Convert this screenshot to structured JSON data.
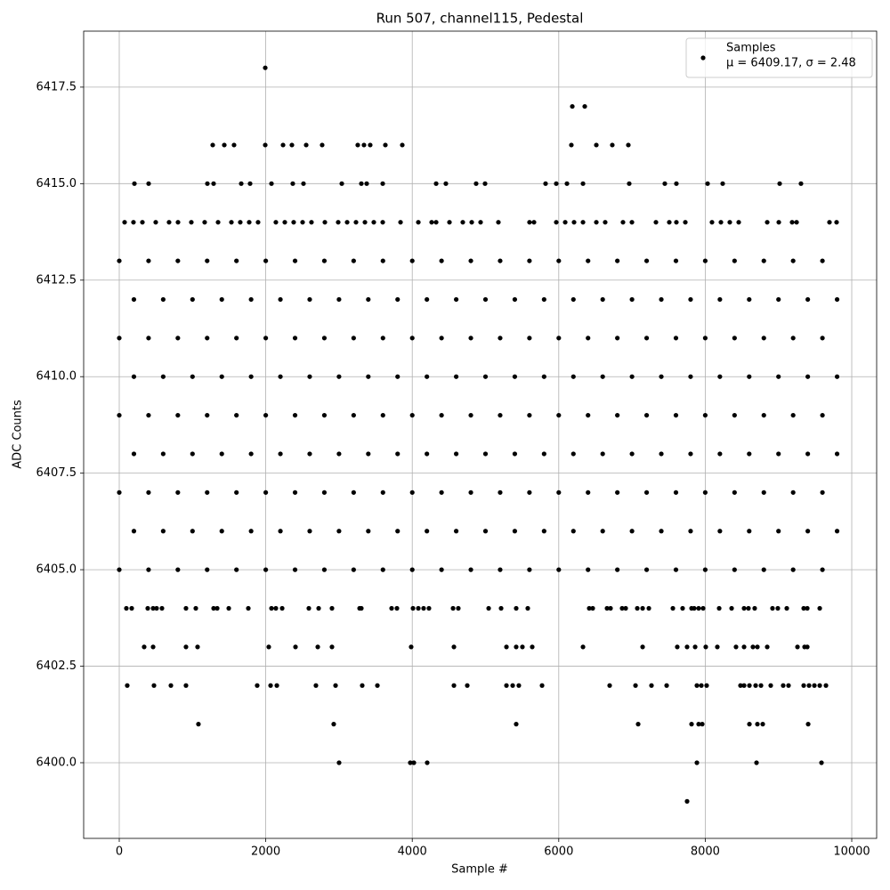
{
  "chart_data": {
    "type": "scatter",
    "title": "Run 507, channel115, Pedestal",
    "x_label": "Sample #",
    "y_label": "ADC Counts",
    "xlim": [
      -486,
      10340
    ],
    "ylim": [
      6398.04,
      6418.95
    ],
    "xticks": [
      0,
      2000,
      4000,
      6000,
      8000,
      10000
    ],
    "yticks": [
      {
        "value": 6400,
        "label": "6400.0"
      },
      6402.5,
      {
        "value": 6405,
        "label": "6405.0"
      },
      6407.5,
      {
        "value": 6410,
        "label": "6410.0"
      },
      6412.5,
      {
        "value": 6415,
        "label": "6415.0"
      },
      6417.5
    ],
    "grid": true,
    "legend": "upper right",
    "legend_stats": "μ = 6409.17, σ = 2.48",
    "x": [
      0,
      400,
      800,
      1200,
      1600,
      2000,
      2400,
      2800,
      3200,
      3600,
      4000,
      4400,
      4800,
      5200,
      5600,
      6000,
      6400,
      6800,
      7200,
      7600,
      8000,
      8400,
      8800,
      9200,
      9600,
      200,
      600,
      1000,
      1400,
      1800,
      2200,
      2600,
      3000,
      3400,
      3800,
      4200,
      4600,
      5000,
      5400,
      5800,
      6200,
      6600,
      7000,
      7400,
      7800,
      8200,
      8600,
      9000,
      9400,
      9800,
      0,
      400,
      800,
      1200,
      1600,
      2000,
      2400,
      2800,
      3200,
      3600,
      4000,
      4400,
      4800,
      5200,
      5600,
      6000,
      6400,
      6800,
      7200,
      7600,
      8000,
      8400,
      8800,
      9200,
      9600,
      200,
      600,
      1000,
      1400,
      1800,
      2200,
      2600,
      3000,
      3400,
      3800,
      4200,
      4600,
      5000,
      5400,
      5800,
      6200,
      6600,
      7000,
      7400,
      7800,
      8200,
      8600,
      9000,
      9400,
      9800,
      0,
      400,
      800,
      1200,
      1600,
      2000,
      2400,
      2800,
      3200,
      3600,
      4000,
      4400,
      4800,
      5200,
      5600,
      6000,
      6400,
      6800,
      7200,
      7600,
      8000,
      8400,
      8800,
      9200,
      9600,
      200,
      600,
      1000,
      1400,
      1800,
      2200,
      2600,
      3000,
      3400,
      3800,
      4200,
      4600,
      5000,
      5400,
      5800,
      6200,
      6600,
      7000,
      7400,
      7800,
      8200,
      8600,
      9000,
      9400,
      9800,
      0,
      400,
      800,
      1200,
      1600,
      2000,
      2400,
      2800,
      3200,
      3600,
      4000,
      4400,
      4800,
      5200,
      5600,
      6000,
      6400,
      6800,
      7200,
      7600,
      8000,
      8400,
      8800,
      9200,
      9600,
      200,
      600,
      1000,
      1400,
      1800,
      2200,
      2600,
      3000,
      3400,
      3800,
      4200,
      4600,
      5000,
      5400,
      5800,
      6200,
      6600,
      7000,
      7400,
      7800,
      8200,
      8600,
      9000,
      9400,
      9800,
      0,
      400,
      800,
      1200,
      1600,
      2000,
      2400,
      2800,
      3200,
      3600,
      4000,
      4400,
      4800,
      5200,
      5600,
      6000,
      6400,
      6800,
      7200,
      7600,
      8000,
      8400,
      8800,
      9200,
      9600,
      1993,
      6185,
      6355,
      1276,
      1434,
      1567,
      1993,
      2236,
      2357,
      2552,
      2770,
      3256,
      3341,
      3426,
      3633,
      3864,
      6172,
      6513,
      6731,
      6950,
      207,
      401,
      1203,
      1288,
      1665,
      1786,
      2078,
      2369,
      2515,
      3038,
      3305,
      3378,
      3597,
      4326,
      4459,
      4872,
      4994,
      5820,
      5966,
      6112,
      6331,
      6962,
      7448,
      7606,
      8032,
      8238,
      9016,
      9307,
      73,
      194,
      316,
      498,
      680,
      802,
      984,
      1166,
      1349,
      1531,
      1652,
      1774,
      1895,
      2138,
      2260,
      2381,
      2503,
      2624,
      2807,
      2989,
      3111,
      3232,
      3354,
      3475,
      3597,
      3840,
      4083,
      4265,
      4326,
      4508,
      4690,
      4812,
      4933,
      5176,
      5601,
      5662,
      5966,
      6088,
      6209,
      6331,
      6513,
      6634,
      6877,
      6999,
      7327,
      7509,
      7606,
      7728,
      8092,
      8214,
      8335,
      8457,
      8846,
      9004,
      9186,
      9247,
      9696,
      9793,
      97,
      170,
      389,
      462,
      510,
      583,
      911,
      1045,
      1288,
      1337,
      1495,
      1762,
      2078,
      2138,
      2224,
      2588,
      2722,
      2904,
      3281,
      3305,
      3718,
      3791,
      4010,
      4083,
      4155,
      4228,
      4557,
      4629,
      5043,
      5213,
      5419,
      5577,
      6416,
      6464,
      6659,
      6707,
      6865,
      6914,
      7072,
      7145,
      7230,
      7558,
      7691,
      7813,
      7849,
      7910,
      7971,
      8190,
      8360,
      8530,
      8590,
      8675,
      8918,
      8991,
      9113,
      9344,
      9393,
      9563,
      340,
      462,
      911,
      1069,
      2041,
      2406,
      2710,
      2904,
      3985,
      4569,
      5286,
      5419,
      5504,
      5638,
      6331,
      7145,
      7618,
      7752,
      7862,
      8007,
      8165,
      8420,
      8530,
      8651,
      8712,
      8846,
      9259,
      9356,
      9393,
      109,
      474,
      705,
      911,
      1883,
      2066,
      2151,
      2685,
      2953,
      3317,
      3524,
      4569,
      4751,
      5286,
      5371,
      5455,
      5772,
      6695,
      7048,
      7266,
      7473,
      7886,
      7947,
      8019,
      8481,
      8530,
      8603,
      8688,
      8761,
      8894,
      9064,
      9137,
      9344,
      9417,
      9490,
      9563,
      9648,
      1081,
      2928,
      5419,
      7084,
      7813,
      7910,
      7959,
      8603,
      8712,
      8785,
      9405,
      3001,
      3973,
      4022,
      4204,
      7886,
      8700,
      9587,
      7752
    ],
    "series": [
      {
        "name": "Samples",
        "color": "#000000",
        "values": [
          6405,
          6405,
          6405,
          6405,
          6405,
          6405,
          6405,
          6405,
          6405,
          6405,
          6405,
          6405,
          6405,
          6405,
          6405,
          6405,
          6405,
          6405,
          6405,
          6405,
          6405,
          6405,
          6405,
          6405,
          6405,
          6406,
          6406,
          6406,
          6406,
          6406,
          6406,
          6406,
          6406,
          6406,
          6406,
          6406,
          6406,
          6406,
          6406,
          6406,
          6406,
          6406,
          6406,
          6406,
          6406,
          6406,
          6406,
          6406,
          6406,
          6406,
          6407,
          6407,
          6407,
          6407,
          6407,
          6407,
          6407,
          6407,
          6407,
          6407,
          6407,
          6407,
          6407,
          6407,
          6407,
          6407,
          6407,
          6407,
          6407,
          6407,
          6407,
          6407,
          6407,
          6407,
          6407,
          6408,
          6408,
          6408,
          6408,
          6408,
          6408,
          6408,
          6408,
          6408,
          6408,
          6408,
          6408,
          6408,
          6408,
          6408,
          6408,
          6408,
          6408,
          6408,
          6408,
          6408,
          6408,
          6408,
          6408,
          6408,
          6409,
          6409,
          6409,
          6409,
          6409,
          6409,
          6409,
          6409,
          6409,
          6409,
          6409,
          6409,
          6409,
          6409,
          6409,
          6409,
          6409,
          6409,
          6409,
          6409,
          6409,
          6409,
          6409,
          6409,
          6409,
          6410,
          6410,
          6410,
          6410,
          6410,
          6410,
          6410,
          6410,
          6410,
          6410,
          6410,
          6410,
          6410,
          6410,
          6410,
          6410,
          6410,
          6410,
          6410,
          6410,
          6410,
          6410,
          6410,
          6410,
          6410,
          6411,
          6411,
          6411,
          6411,
          6411,
          6411,
          6411,
          6411,
          6411,
          6411,
          6411,
          6411,
          6411,
          6411,
          6411,
          6411,
          6411,
          6411,
          6411,
          6411,
          6411,
          6411,
          6411,
          6411,
          6411,
          6412,
          6412,
          6412,
          6412,
          6412,
          6412,
          6412,
          6412,
          6412,
          6412,
          6412,
          6412,
          6412,
          6412,
          6412,
          6412,
          6412,
          6412,
          6412,
          6412,
          6412,
          6412,
          6412,
          6412,
          6412,
          6413,
          6413,
          6413,
          6413,
          6413,
          6413,
          6413,
          6413,
          6413,
          6413,
          6413,
          6413,
          6413,
          6413,
          6413,
          6413,
          6413,
          6413,
          6413,
          6413,
          6413,
          6413,
          6413,
          6413,
          6413,
          6418,
          6417,
          6417,
          6416,
          6416,
          6416,
          6416,
          6416,
          6416,
          6416,
          6416,
          6416,
          6416,
          6416,
          6416,
          6416,
          6416,
          6416,
          6416,
          6416,
          6415,
          6415,
          6415,
          6415,
          6415,
          6415,
          6415,
          6415,
          6415,
          6415,
          6415,
          6415,
          6415,
          6415,
          6415,
          6415,
          6415,
          6415,
          6415,
          6415,
          6415,
          6415,
          6415,
          6415,
          6415,
          6415,
          6415,
          6415,
          6414,
          6414,
          6414,
          6414,
          6414,
          6414,
          6414,
          6414,
          6414,
          6414,
          6414,
          6414,
          6414,
          6414,
          6414,
          6414,
          6414,
          6414,
          6414,
          6414,
          6414,
          6414,
          6414,
          6414,
          6414,
          6414,
          6414,
          6414,
          6414,
          6414,
          6414,
          6414,
          6414,
          6414,
          6414,
          6414,
          6414,
          6414,
          6414,
          6414,
          6414,
          6414,
          6414,
          6414,
          6414,
          6414,
          6414,
          6414,
          6414,
          6414,
          6414,
          6414,
          6414,
          6414,
          6414,
          6414,
          6414,
          6414,
          6404,
          6404,
          6404,
          6404,
          6404,
          6404,
          6404,
          6404,
          6404,
          6404,
          6404,
          6404,
          6404,
          6404,
          6404,
          6404,
          6404,
          6404,
          6404,
          6404,
          6404,
          6404,
          6404,
          6404,
          6404,
          6404,
          6404,
          6404,
          6404,
          6404,
          6404,
          6404,
          6404,
          6404,
          6404,
          6404,
          6404,
          6404,
          6404,
          6404,
          6404,
          6404,
          6404,
          6404,
          6404,
          6404,
          6404,
          6404,
          6404,
          6404,
          6404,
          6404,
          6404,
          6404,
          6404,
          6404,
          6404,
          6404,
          6403,
          6403,
          6403,
          6403,
          6403,
          6403,
          6403,
          6403,
          6403,
          6403,
          6403,
          6403,
          6403,
          6403,
          6403,
          6403,
          6403,
          6403,
          6403,
          6403,
          6403,
          6403,
          6403,
          6403,
          6403,
          6403,
          6403,
          6403,
          6403,
          6402,
          6402,
          6402,
          6402,
          6402,
          6402,
          6402,
          6402,
          6402,
          6402,
          6402,
          6402,
          6402,
          6402,
          6402,
          6402,
          6402,
          6402,
          6402,
          6402,
          6402,
          6402,
          6402,
          6402,
          6402,
          6402,
          6402,
          6402,
          6402,
          6402,
          6402,
          6402,
          6402,
          6402,
          6402,
          6402,
          6402,
          6401,
          6401,
          6401,
          6401,
          6401,
          6401,
          6401,
          6401,
          6401,
          6401,
          6401,
          6400,
          6400,
          6400,
          6400,
          6400,
          6400,
          6400,
          6399
        ]
      }
    ]
  }
}
